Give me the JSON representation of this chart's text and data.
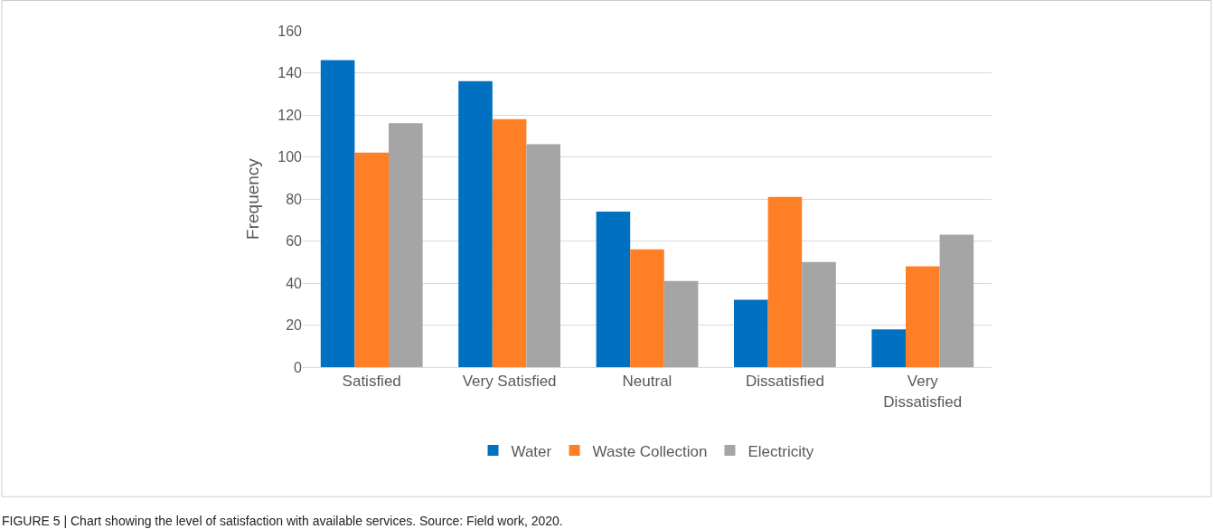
{
  "chart_data": {
    "type": "bar",
    "ylabel": "Frequency",
    "categories": [
      "Satisfied",
      "Very Satisfied",
      "Neutral",
      "Dissatisfied",
      "Very Dissatisfied"
    ],
    "series": [
      {
        "name": "Water",
        "color": "#0070c0",
        "values": [
          146,
          136,
          74,
          32,
          18
        ]
      },
      {
        "name": "Waste Collection",
        "color": "#ff7f27",
        "values": [
          102,
          118,
          56,
          81,
          48
        ]
      },
      {
        "name": "Electricity",
        "color": "#a5a5a5",
        "values": [
          116,
          106,
          41,
          50,
          63
        ]
      }
    ],
    "ylim": [
      0,
      160
    ],
    "yticks": [
      0,
      20,
      40,
      60,
      80,
      100,
      120,
      140,
      160
    ],
    "grid": "y",
    "legend": "bottom",
    "annotations": [
      "FIGURE 5 | Chart showing the level of satisfaction with available services. Source: Field work, 2020."
    ]
  }
}
